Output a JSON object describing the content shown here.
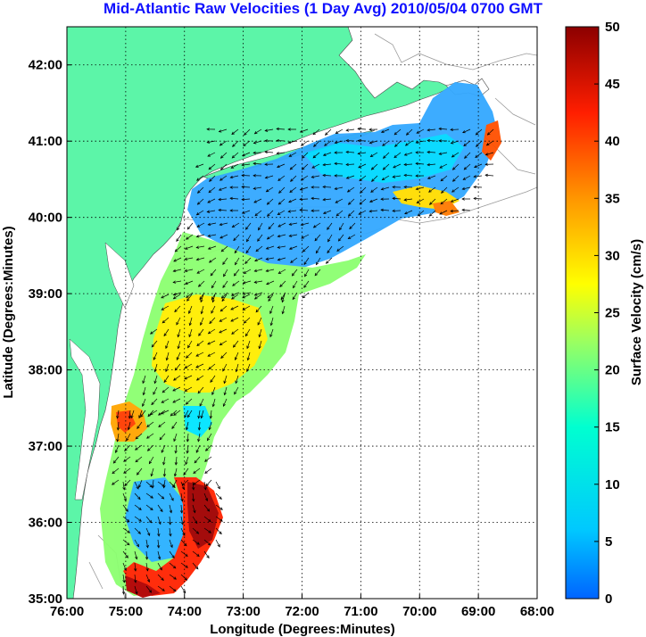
{
  "title": "Mid-Atlantic Raw Velocities (1 Day Avg) 2010/05/04 0700 GMT",
  "colors": {
    "land": "#5cf5a8",
    "background": "#ffffff",
    "grid": "#000000",
    "contour": "#9a9a9a",
    "title": "#1010ff"
  },
  "map": {
    "xlabel": "Longitude (Degrees:Minutes)",
    "ylabel": "Latitude (Degrees:Minutes)",
    "xlim": [
      -76,
      -68
    ],
    "ylim": [
      35,
      42.5
    ],
    "xticks": [
      {
        "value": -76,
        "label": "76:00"
      },
      {
        "value": -75,
        "label": "75:00"
      },
      {
        "value": -74,
        "label": "74:00"
      },
      {
        "value": -73,
        "label": "73:00"
      },
      {
        "value": -72,
        "label": "72:00"
      },
      {
        "value": -71,
        "label": "71:00"
      },
      {
        "value": -70,
        "label": "70:00"
      },
      {
        "value": -69,
        "label": "69:00"
      },
      {
        "value": -68,
        "label": "68:00"
      }
    ],
    "yticks": [
      {
        "value": 35,
        "label": "35:00"
      },
      {
        "value": 36,
        "label": "36:00"
      },
      {
        "value": 37,
        "label": "37:00"
      },
      {
        "value": 38,
        "label": "38:00"
      },
      {
        "value": 39,
        "label": "39:00"
      },
      {
        "value": 40,
        "label": "40:00"
      },
      {
        "value": 41,
        "label": "41:00"
      },
      {
        "value": 42,
        "label": "42:00"
      }
    ],
    "grid": "dotted"
  },
  "colorbar": {
    "label": "Surface Velocity (cm/s)",
    "range": [
      0,
      50
    ],
    "colormap": "jet",
    "ticks": [
      {
        "value": 0,
        "label": "0"
      },
      {
        "value": 5,
        "label": "5"
      },
      {
        "value": 10,
        "label": "10"
      },
      {
        "value": 15,
        "label": "15"
      },
      {
        "value": 20,
        "label": "20"
      },
      {
        "value": 25,
        "label": "25"
      },
      {
        "value": 30,
        "label": "30"
      },
      {
        "value": 35,
        "label": "35"
      },
      {
        "value": 40,
        "label": "40"
      },
      {
        "value": 45,
        "label": "45"
      },
      {
        "value": 50,
        "label": "50"
      }
    ]
  }
}
